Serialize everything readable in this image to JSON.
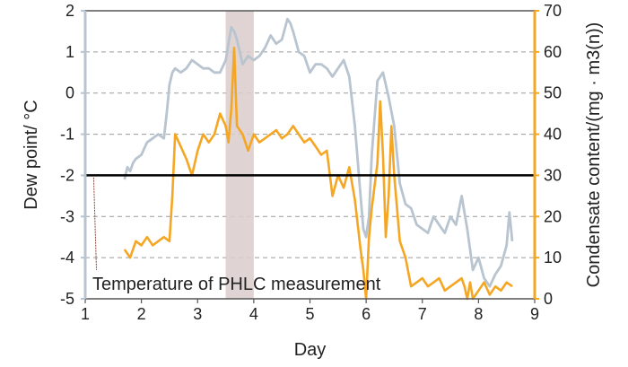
{
  "chart_data": {
    "type": "line",
    "xlabel": "Day",
    "ylabel_left": "Dew point/ °C",
    "ylabel_right": "Condensate content/(mg · m3(n))",
    "xlim": [
      1,
      9
    ],
    "ylim_left": [
      -5,
      2
    ],
    "ylim_right": [
      0,
      70
    ],
    "x_ticks": [
      "1",
      "2",
      "3",
      "4",
      "5",
      "6",
      "7",
      "8",
      "9"
    ],
    "y_left_ticks": [
      "2",
      "1",
      "0",
      "-1",
      "-2",
      "-3",
      "-4",
      "-5"
    ],
    "y_right_ticks": [
      "70",
      "60",
      "50",
      "40",
      "30",
      "20",
      "10",
      "0"
    ],
    "grid": true,
    "shaded_band": {
      "x_start": 3.5,
      "x_end": 4.0,
      "color": "#d9cdcb"
    },
    "reference_line": {
      "y_left": -2,
      "color": "#000000"
    },
    "annotation": {
      "text": "Temperature of PHLC measurement",
      "arrow_from": [
        1.15,
        -2.05
      ],
      "arrow_to": [
        1.2,
        -4.3
      ]
    },
    "series": [
      {
        "axis": "left",
        "color": "#b8c4cf",
        "x": [
          1.7,
          1.75,
          1.8,
          1.85,
          1.9,
          2.0,
          2.1,
          2.2,
          2.3,
          2.4,
          2.45,
          2.5,
          2.55,
          2.6,
          2.7,
          2.8,
          2.9,
          3.0,
          3.1,
          3.2,
          3.3,
          3.4,
          3.5,
          3.6,
          3.65,
          3.7,
          3.8,
          3.9,
          4.0,
          4.1,
          4.2,
          4.3,
          4.4,
          4.5,
          4.6,
          4.65,
          4.7,
          4.8,
          4.9,
          5.0,
          5.1,
          5.2,
          5.3,
          5.4,
          5.5,
          5.6,
          5.7,
          5.8,
          5.9,
          5.95,
          6.0,
          6.05,
          6.1,
          6.2,
          6.3,
          6.4,
          6.5,
          6.6,
          6.7,
          6.8,
          6.9,
          7.0,
          7.1,
          7.2,
          7.3,
          7.4,
          7.5,
          7.6,
          7.7,
          7.8,
          7.9,
          8.0,
          8.1,
          8.2,
          8.3,
          8.4,
          8.5,
          8.55,
          8.6
        ],
        "y": [
          -2.1,
          -1.8,
          -1.9,
          -1.7,
          -1.6,
          -1.5,
          -1.2,
          -1.1,
          -1.0,
          -1.1,
          -0.5,
          0.2,
          0.5,
          0.6,
          0.5,
          0.6,
          0.8,
          0.7,
          0.6,
          0.6,
          0.5,
          0.5,
          0.8,
          1.6,
          1.5,
          1.3,
          0.7,
          0.9,
          0.8,
          0.9,
          1.1,
          1.4,
          1.2,
          1.3,
          1.8,
          1.7,
          1.5,
          1.0,
          0.9,
          0.5,
          0.7,
          0.7,
          0.6,
          0.4,
          0.6,
          0.8,
          0.4,
          -0.8,
          -2.5,
          -3.3,
          -3.5,
          -3.0,
          -1.5,
          0.3,
          0.5,
          -0.1,
          -0.8,
          -2.2,
          -2.7,
          -2.8,
          -3.2,
          -3.3,
          -3.4,
          -3.0,
          -3.2,
          -3.4,
          -3.0,
          -3.2,
          -2.5,
          -3.3,
          -4.3,
          -4.0,
          -4.5,
          -4.7,
          -4.4,
          -4.2,
          -3.7,
          -2.9,
          -3.6
        ]
      },
      {
        "axis": "left",
        "color": "#f5a623",
        "x": [
          1.7,
          1.8,
          1.9,
          2.0,
          2.1,
          2.2,
          2.3,
          2.4,
          2.5,
          2.55,
          2.6,
          2.7,
          2.8,
          2.9,
          3.0,
          3.1,
          3.2,
          3.3,
          3.4,
          3.5,
          3.55,
          3.6,
          3.65,
          3.7,
          3.8,
          3.9,
          4.0,
          4.1,
          4.2,
          4.3,
          4.4,
          4.5,
          4.6,
          4.7,
          4.8,
          4.9,
          5.0,
          5.1,
          5.2,
          5.3,
          5.4,
          5.5,
          5.6,
          5.7,
          5.8,
          5.9,
          5.95,
          6.0,
          6.05,
          6.1,
          6.2,
          6.25,
          6.3,
          6.35,
          6.4,
          6.45,
          6.5,
          6.6,
          6.7,
          6.8,
          6.9,
          7.0,
          7.1,
          7.2,
          7.3,
          7.4,
          7.5,
          7.6,
          7.7,
          7.75,
          7.8,
          7.85,
          7.9,
          8.0,
          8.1,
          8.2,
          8.3,
          8.4,
          8.5,
          8.6
        ],
        "y": [
          -3.8,
          -4.0,
          -3.6,
          -3.7,
          -3.5,
          -3.7,
          -3.6,
          -3.5,
          -3.6,
          -2.5,
          -1.0,
          -1.3,
          -1.6,
          -2.0,
          -1.4,
          -1.0,
          -1.2,
          -1.0,
          -0.5,
          -0.8,
          -1.2,
          -0.4,
          1.1,
          -0.8,
          -1.0,
          -1.4,
          -1.0,
          -1.2,
          -1.1,
          -1.0,
          -0.9,
          -1.1,
          -1.0,
          -0.8,
          -1.0,
          -1.2,
          -1.1,
          -1.3,
          -1.5,
          -1.4,
          -2.5,
          -2.0,
          -2.3,
          -1.8,
          -2.6,
          -3.8,
          -4.3,
          -5.0,
          -3.5,
          -2.8,
          -1.7,
          -0.2,
          -1.5,
          -3.5,
          -2.5,
          -0.8,
          -2.0,
          -3.6,
          -4.0,
          -4.7,
          -4.6,
          -4.5,
          -4.7,
          -4.6,
          -4.5,
          -4.8,
          -4.7,
          -4.6,
          -4.5,
          -4.7,
          -5.0,
          -4.6,
          -5.0,
          -4.8,
          -4.6,
          -4.9,
          -4.7,
          -4.8,
          -4.6,
          -4.7
        ]
      }
    ]
  }
}
